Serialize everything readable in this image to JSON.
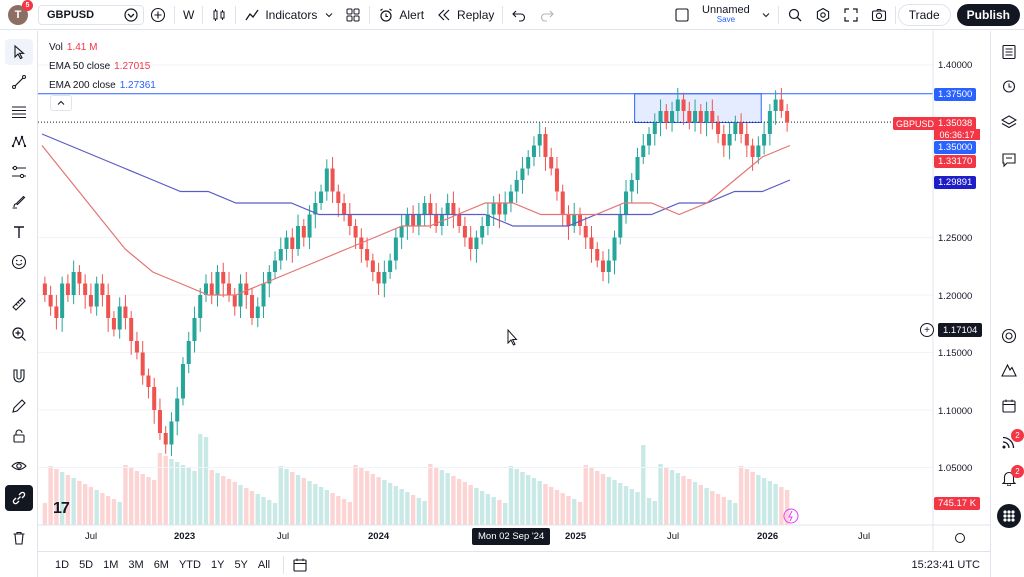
{
  "account": {
    "avatar_initial": "T",
    "notification_count": "5"
  },
  "toolbar": {
    "symbol": "GBPUSD",
    "interval": "W",
    "indicators_label": "Indicators",
    "alert_label": "Alert",
    "replay_label": "Replay",
    "layout_name": "Unnamed",
    "layout_save": "Save",
    "trade_label": "Trade",
    "publish_label": "Publish"
  },
  "legend": {
    "vol_label": "Vol",
    "vol_value": "1.41 M",
    "ema50_label": "EMA 50 close",
    "ema50_value": "1.27015",
    "ema200_label": "EMA 200 close",
    "ema200_value": "1.27361"
  },
  "colors": {
    "up": "#26a69a",
    "down": "#ef5350",
    "ema50": "#e57373",
    "ema200": "#5c5cc4",
    "accent": "#2962ff"
  },
  "price_axis": [
    "1.40000",
    "1.25000",
    "1.20000",
    "1.15000",
    "1.10000",
    "1.05000"
  ],
  "price_tags": {
    "box_top": "1.37500",
    "symbol": "GBPUSD",
    "last": "1.35038",
    "countdown": "06:36:17",
    "box_bottom": "1.35000",
    "ema50": "1.33170",
    "ema200": "1.29891",
    "crosshair": "1.17104",
    "volume": "745.17 K"
  },
  "time_axis": {
    "labels": [
      "Jul",
      "2023",
      "Jul",
      "2024",
      "2025",
      "Jul",
      "2026",
      "Jul"
    ],
    "crosshair_date": "Mon 02 Sep '24"
  },
  "ranges": [
    "1D",
    "5D",
    "1M",
    "3M",
    "6M",
    "YTD",
    "1Y",
    "5Y",
    "All"
  ],
  "clock": "15:23:41 UTC",
  "right_badges": {
    "ideas": "2",
    "notifications": "2"
  },
  "chart_data": {
    "type": "candlestick",
    "symbol": "GBPUSD",
    "interval": "W",
    "ylim": [
      1.03,
      1.42
    ],
    "closes": [
      1.2,
      1.19,
      1.18,
      1.21,
      1.2,
      1.22,
      1.21,
      1.2,
      1.19,
      1.21,
      1.2,
      1.18,
      1.17,
      1.19,
      1.18,
      1.16,
      1.15,
      1.13,
      1.12,
      1.1,
      1.08,
      1.07,
      1.09,
      1.11,
      1.14,
      1.16,
      1.18,
      1.2,
      1.21,
      1.2,
      1.22,
      1.21,
      1.2,
      1.19,
      1.21,
      1.2,
      1.18,
      1.19,
      1.21,
      1.22,
      1.23,
      1.24,
      1.25,
      1.24,
      1.26,
      1.25,
      1.27,
      1.28,
      1.29,
      1.31,
      1.29,
      1.28,
      1.27,
      1.26,
      1.25,
      1.24,
      1.23,
      1.22,
      1.21,
      1.22,
      1.23,
      1.25,
      1.26,
      1.27,
      1.26,
      1.27,
      1.28,
      1.27,
      1.26,
      1.27,
      1.28,
      1.27,
      1.26,
      1.25,
      1.24,
      1.25,
      1.26,
      1.27,
      1.28,
      1.27,
      1.28,
      1.29,
      1.3,
      1.31,
      1.32,
      1.33,
      1.34,
      1.32,
      1.31,
      1.29,
      1.27,
      1.26,
      1.27,
      1.26,
      1.25,
      1.24,
      1.23,
      1.22,
      1.23,
      1.25,
      1.27,
      1.29,
      1.3,
      1.32,
      1.33,
      1.34,
      1.35,
      1.36,
      1.35,
      1.36,
      1.37,
      1.36,
      1.35,
      1.36,
      1.35,
      1.36,
      1.35,
      1.34,
      1.33,
      1.34,
      1.35,
      1.34,
      1.33,
      1.32,
      1.33,
      1.34,
      1.36,
      1.37,
      1.36,
      1.35
    ],
    "ema50": [
      1.33,
      1.3,
      1.27,
      1.24,
      1.22,
      1.21,
      1.2,
      1.2,
      1.21,
      1.22,
      1.23,
      1.24,
      1.25,
      1.26,
      1.26,
      1.27,
      1.28,
      1.28,
      1.27,
      1.27,
      1.27,
      1.28,
      1.28,
      1.27,
      1.28,
      1.3,
      1.32,
      1.33
    ],
    "ema200": [
      1.34,
      1.33,
      1.32,
      1.31,
      1.3,
      1.29,
      1.29,
      1.28,
      1.28,
      1.28,
      1.27,
      1.27,
      1.27,
      1.27,
      1.27,
      1.27,
      1.27,
      1.26,
      1.26,
      1.26,
      1.27,
      1.27,
      1.27,
      1.28,
      1.28,
      1.29,
      1.29,
      1.3
    ],
    "rectangle": {
      "top": 1.375,
      "bottom": 1.35
    },
    "last_price": 1.35038
  }
}
